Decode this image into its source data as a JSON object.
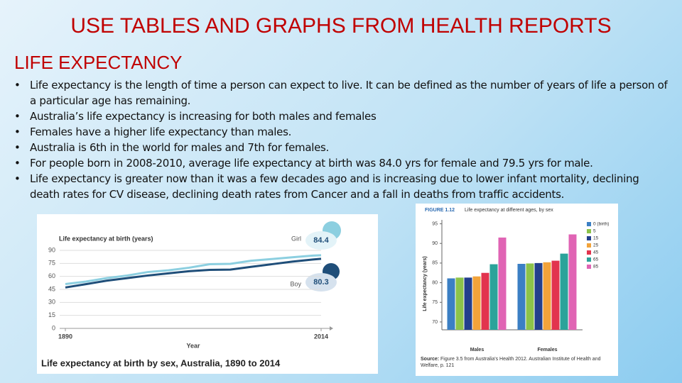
{
  "header": {
    "title": "USE TABLES AND GRAPHS FROM HEALTH REPORTS",
    "subtitle": "LIFE EXPECTANCY"
  },
  "bullets": [
    "Life expectancy is the length of time a person can expect to live. It can be defined as the number of years of life a person of a particular age has remaining.",
    "Australia’s life expectancy is increasing for both males and females",
    "Females have a higher life expectancy than males.",
    "Australia is 6th in the world for males and 7th for females.",
    "For people born in 2008-2010, average life expectancy at birth was 84.0 yrs for female and 79.5 yrs for male.",
    "Life expectancy is greater now than it was a few decades ago and is increasing due to lower infant mortality, declining death rates for CV disease, declining death rates from Cancer and a fall in deaths from traffic accidents."
  ],
  "chart_data": [
    {
      "type": "line",
      "title": "Life expectancy at birth (years)",
      "xlabel": "Year",
      "caption": "Life expectancy at birth by sex, Australia, 1890 to 2014",
      "x": [
        1890,
        1900,
        1910,
        1920,
        1930,
        1940,
        1950,
        1960,
        1970,
        1980,
        1990,
        2000,
        2010,
        2014
      ],
      "series": [
        {
          "name": "Girl",
          "color": "#8ccfe0",
          "values": [
            51.1,
            54,
            58,
            61,
            65,
            67,
            70,
            74,
            74.5,
            78,
            80,
            82,
            84,
            84.4
          ]
        },
        {
          "name": "Boy",
          "color": "#1f4e79",
          "values": [
            47.2,
            51,
            55,
            58,
            61,
            63.5,
            66,
            67.5,
            67.8,
            71,
            74,
            77,
            79.5,
            80.3
          ]
        }
      ],
      "xlim": [
        1890,
        2014
      ],
      "xticks": [
        1890,
        2014
      ],
      "ylim": [
        0,
        90
      ],
      "yticks": [
        0,
        15,
        30,
        45,
        60,
        75,
        90
      ]
    },
    {
      "type": "bar",
      "figure_label": "FIGURE 1.12",
      "title": "Life expectancy at different ages, by sex",
      "ylabel": "Life expectancy (years)",
      "categories": [
        "Males",
        "Females"
      ],
      "series": [
        {
          "name": "0 (birth)",
          "color": "#3b7fc4",
          "values": [
            81.1,
            84.8
          ]
        },
        {
          "name": "5",
          "color": "#8cc34a",
          "values": [
            81.3,
            84.9
          ]
        },
        {
          "name": "15",
          "color": "#233f8c",
          "values": [
            81.3,
            85.0
          ]
        },
        {
          "name": "25",
          "color": "#f2a33a",
          "values": [
            81.6,
            85.2
          ]
        },
        {
          "name": "45",
          "color": "#e2344e",
          "values": [
            82.5,
            85.6
          ]
        },
        {
          "name": "65",
          "color": "#2ba39a",
          "values": [
            84.7,
            87.4
          ]
        },
        {
          "name": "85",
          "color": "#e064b4",
          "values": [
            91.5,
            92.3
          ]
        }
      ],
      "ylim": [
        68,
        96
      ],
      "yticks": [
        70,
        75,
        80,
        85,
        90,
        95
      ],
      "source_label": "Source:",
      "source": "Figure 3.5 from Australia's Health 2012. Australian Institute of Health and Welfare, p. 121"
    }
  ]
}
